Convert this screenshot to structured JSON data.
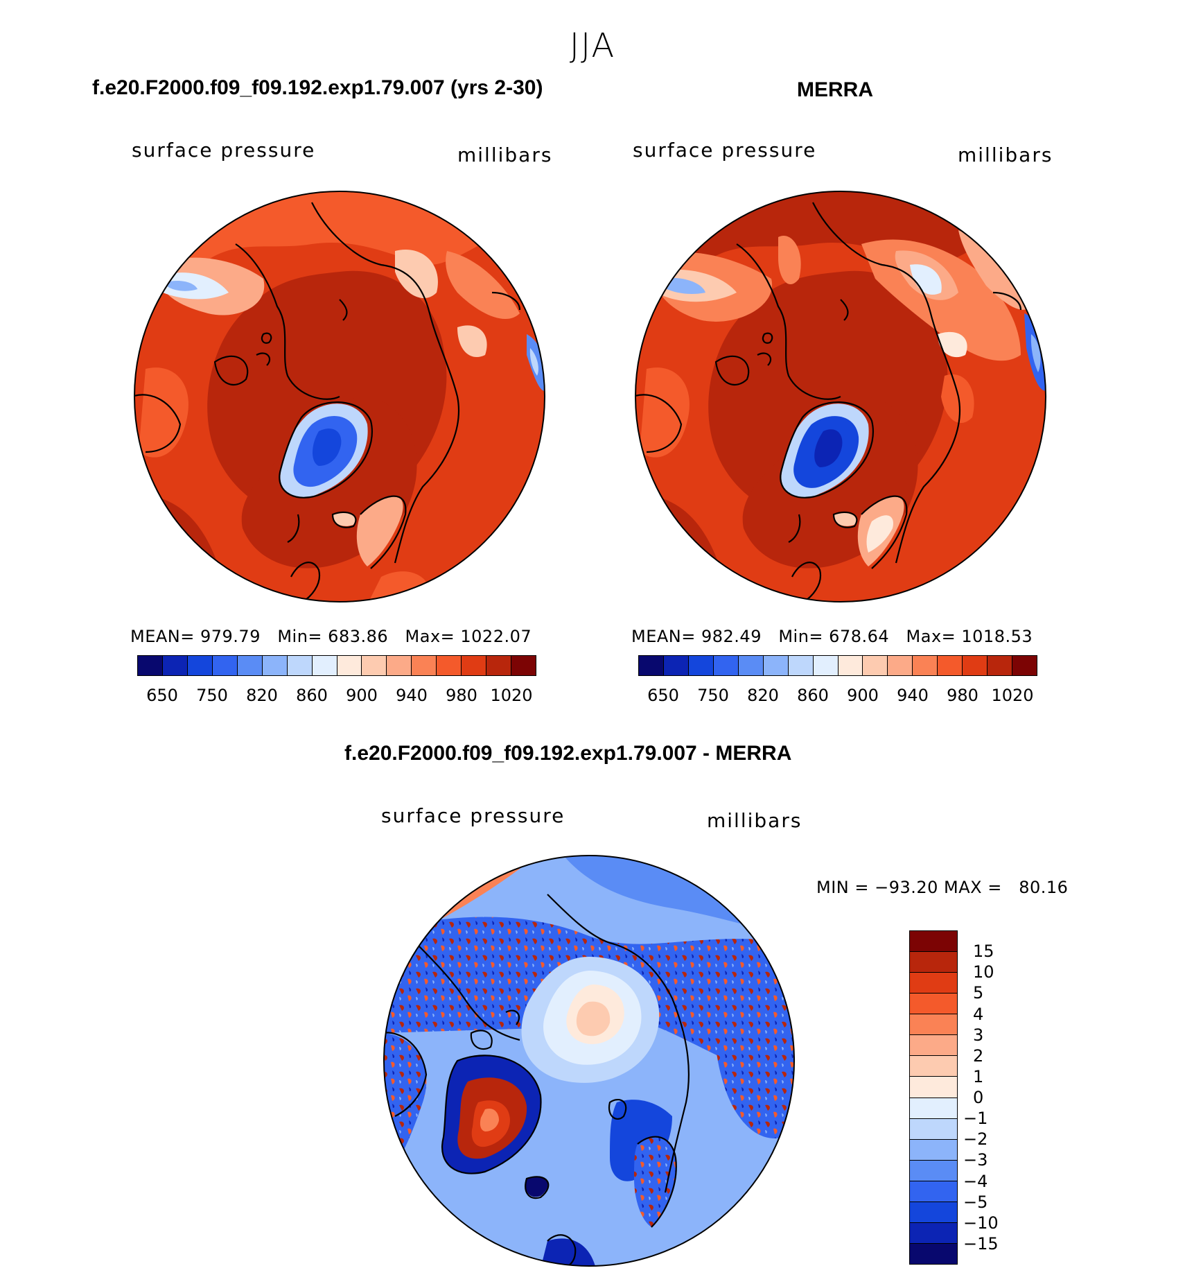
{
  "title": "JJA",
  "panels": [
    {
      "title": "f.e20.F2000.f09_f09.192.exp1.79.007 (yrs 2-30)",
      "left_label": "surface pressure",
      "right_label": "millibars",
      "stats": "MEAN= 979.79   Min= 683.86   Max= 1022.07",
      "colorbar_ticks": [
        "650",
        "750",
        "820",
        "860",
        "900",
        "940",
        "980",
        "1020"
      ]
    },
    {
      "title": "MERRA",
      "left_label": "surface pressure",
      "right_label": "millibars",
      "stats": "MEAN= 982.49   Min= 678.64   Max= 1018.53",
      "colorbar_ticks": [
        "650",
        "750",
        "820",
        "860",
        "900",
        "940",
        "980",
        "1020"
      ]
    },
    {
      "title": "f.e20.F2000.f09_f09.192.exp1.79.007 - MERRA",
      "left_label": "surface pressure",
      "right_label": "millibars",
      "stats": "MIN = −93.20 MAX =   80.16",
      "colorbar_ticks": [
        "15",
        "10",
        "5",
        "4",
        "3",
        "2",
        "1",
        "0",
        "−1",
        "−2",
        "−3",
        "−4",
        "−5",
        "−10",
        "−15"
      ]
    }
  ],
  "colors": {
    "abs_scale": [
      "#08086e",
      "#0c24b4",
      "#1446dc",
      "#3264f0",
      "#5a8cf5",
      "#8cb4fa",
      "#bed7fc",
      "#e2effe",
      "#feeadc",
      "#fdcbb0",
      "#fcaa88",
      "#fa8255",
      "#f45a2b",
      "#e03c14",
      "#b8260c",
      "#7c0404"
    ],
    "diff_scale": [
      "#7c0404",
      "#b8260c",
      "#e03c14",
      "#f45a2b",
      "#fa8255",
      "#fcaa88",
      "#fdcbb0",
      "#feeadc",
      "#e2effe",
      "#bed7fc",
      "#8cb4fa",
      "#5a8cf5",
      "#3264f0",
      "#1446dc",
      "#0c24b4",
      "#08086e"
    ]
  },
  "chart_data": [
    {
      "type": "heatmap",
      "title": "f.e20.F2000.f09_f09.192.exp1.79.007 (yrs 2-30)",
      "variable": "surface pressure",
      "units": "millibars",
      "projection": "north polar stereographic",
      "mean": 979.79,
      "min": 683.86,
      "max": 1022.07,
      "levels": [
        650,
        750,
        820,
        860,
        900,
        940,
        980,
        1020
      ]
    },
    {
      "type": "heatmap",
      "title": "MERRA",
      "variable": "surface pressure",
      "units": "millibars",
      "projection": "north polar stereographic",
      "mean": 982.49,
      "min": 678.64,
      "max": 1018.53,
      "levels": [
        650,
        750,
        820,
        860,
        900,
        940,
        980,
        1020
      ]
    },
    {
      "type": "heatmap",
      "title": "f.e20.F2000.f09_f09.192.exp1.79.007 - MERRA",
      "variable": "surface pressure",
      "units": "millibars",
      "projection": "north polar stereographic",
      "min": -93.2,
      "max": 80.16,
      "levels": [
        15,
        10,
        5,
        4,
        3,
        2,
        1,
        0,
        -1,
        -2,
        -3,
        -4,
        -5,
        -10,
        -15
      ]
    }
  ]
}
